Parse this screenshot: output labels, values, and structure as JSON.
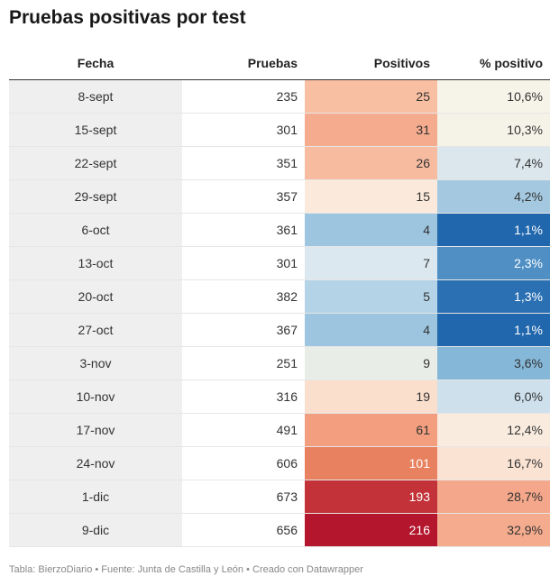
{
  "title": "Pruebas positivas por test",
  "headers": [
    "Fecha",
    "Pruebas",
    "Positivos",
    "% positivo"
  ],
  "rows": [
    {
      "fecha": "8-sept",
      "pruebas": "235",
      "positivos": "25",
      "pct": "10,6%",
      "pos_bg": "#f9bfa3",
      "pos_fg": "#333333",
      "pct_bg": "#f6f3e8",
      "pct_fg": "#333333"
    },
    {
      "fecha": "15-sept",
      "pruebas": "301",
      "positivos": "31",
      "pct": "10,3%",
      "pos_bg": "#f5ab8d",
      "pos_fg": "#333333",
      "pct_bg": "#f5f3e8",
      "pct_fg": "#333333"
    },
    {
      "fecha": "22-sept",
      "pruebas": "351",
      "positivos": "26",
      "pct": "7,4%",
      "pos_bg": "#f7bba0",
      "pos_fg": "#333333",
      "pct_bg": "#dbe7ed",
      "pct_fg": "#333333"
    },
    {
      "fecha": "29-sept",
      "pruebas": "357",
      "positivos": "15",
      "pct": "4,2%",
      "pos_bg": "#fbeadb",
      "pos_fg": "#333333",
      "pct_bg": "#a3c8e0",
      "pct_fg": "#333333"
    },
    {
      "fecha": "6-oct",
      "pruebas": "361",
      "positivos": "4",
      "pct": "1,1%",
      "pos_bg": "#9dc5df",
      "pos_fg": "#333333",
      "pct_bg": "#2067ad",
      "pct_fg": "#ffffff"
    },
    {
      "fecha": "13-oct",
      "pruebas": "301",
      "positivos": "7",
      "pct": "2,3%",
      "pos_bg": "#dbe8ef",
      "pos_fg": "#333333",
      "pct_bg": "#4f8fc4",
      "pct_fg": "#ffffff"
    },
    {
      "fecha": "20-oct",
      "pruebas": "382",
      "positivos": "5",
      "pct": "1,3%",
      "pos_bg": "#b5d3e7",
      "pos_fg": "#333333",
      "pct_bg": "#2b70b3",
      "pct_fg": "#ffffff"
    },
    {
      "fecha": "27-oct",
      "pruebas": "367",
      "positivos": "4",
      "pct": "1,1%",
      "pos_bg": "#9dc5df",
      "pos_fg": "#333333",
      "pct_bg": "#2067ad",
      "pct_fg": "#ffffff"
    },
    {
      "fecha": "3-nov",
      "pruebas": "251",
      "positivos": "9",
      "pct": "3,6%",
      "pos_bg": "#e9ede7",
      "pos_fg": "#333333",
      "pct_bg": "#84b7d8",
      "pct_fg": "#333333"
    },
    {
      "fecha": "10-nov",
      "pruebas": "316",
      "positivos": "19",
      "pct": "6,0%",
      "pos_bg": "#fbdfcd",
      "pos_fg": "#333333",
      "pct_bg": "#cde0ec",
      "pct_fg": "#333333"
    },
    {
      "fecha": "17-nov",
      "pruebas": "491",
      "positivos": "61",
      "pct": "12,4%",
      "pos_bg": "#f39f7f",
      "pos_fg": "#333333",
      "pct_bg": "#f9ecdf",
      "pct_fg": "#333333"
    },
    {
      "fecha": "24-nov",
      "pruebas": "606",
      "positivos": "101",
      "pct": "16,7%",
      "pos_bg": "#e8815f",
      "pos_fg": "#ffffff",
      "pct_bg": "#fbe3d3",
      "pct_fg": "#333333"
    },
    {
      "fecha": "1-dic",
      "pruebas": "673",
      "positivos": "193",
      "pct": "28,7%",
      "pos_bg": "#c23238",
      "pos_fg": "#ffffff",
      "pct_bg": "#f4a78a",
      "pct_fg": "#333333"
    },
    {
      "fecha": "9-dic",
      "pruebas": "656",
      "positivos": "216",
      "pct": "32,9%",
      "pos_bg": "#b3162d",
      "pos_fg": "#ffffff",
      "pct_bg": "#f5ac8e",
      "pct_fg": "#333333"
    }
  ],
  "footer": "Tabla: BierzoDiario • Fuente: Junta de Castilla y León • Creado con Datawrapper"
}
